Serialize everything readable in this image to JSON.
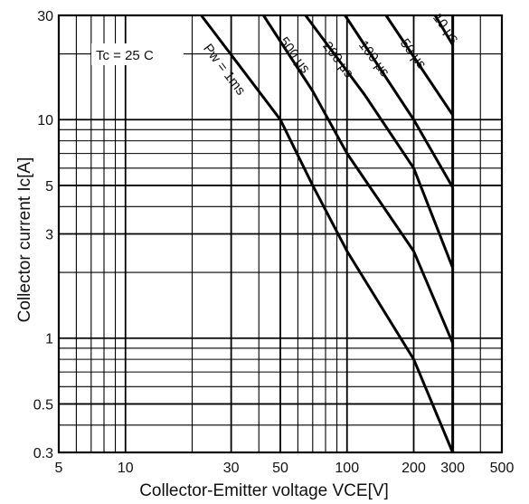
{
  "chart_data": {
    "type": "line",
    "title": "",
    "xlabel": "Collector-Emitter voltage VCE[V]",
    "ylabel": "Collector current   Ic[A]",
    "x_scale": "log",
    "y_scale": "log",
    "xlim": [
      5,
      500
    ],
    "ylim": [
      0.3,
      30
    ],
    "grid": true,
    "x_ticks": [
      5,
      10,
      30,
      50,
      100,
      200,
      300,
      500
    ],
    "x_tick_labels": [
      "5",
      "10",
      "30",
      "50",
      "100",
      "200",
      "300",
      "500"
    ],
    "y_ticks": [
      0.3,
      0.5,
      1,
      3,
      5,
      10,
      30
    ],
    "y_tick_labels": [
      "0.3",
      "0.5",
      "1",
      "3",
      "5",
      "10",
      "30"
    ],
    "annotation": "Tc = 25 C",
    "series": [
      {
        "name": "Pw = 1ms",
        "x": [
          22,
          50,
          70,
          100,
          200,
          300
        ],
        "y": [
          30,
          10,
          5,
          2.5,
          0.8,
          0.3
        ]
      },
      {
        "name": "500 μs",
        "x": [
          42,
          70,
          100,
          200,
          300
        ],
        "y": [
          30,
          13.5,
          7,
          2.5,
          0.95
        ]
      },
      {
        "name": "200 μs",
        "x": [
          65,
          120,
          200,
          300
        ],
        "y": [
          30,
          13,
          6,
          2.1
        ]
      },
      {
        "name": "100 μs",
        "x": [
          98,
          200,
          300
        ],
        "y": [
          30,
          10,
          4.9
        ]
      },
      {
        "name": "50 μs",
        "x": [
          150,
          300
        ],
        "y": [
          30,
          10.5
        ]
      },
      {
        "name": "10 μs",
        "x": [
          250,
          300
        ],
        "y": [
          30,
          22
        ]
      }
    ]
  }
}
